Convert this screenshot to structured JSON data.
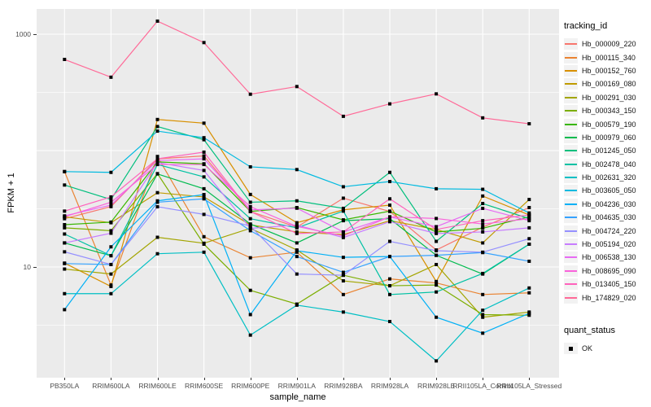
{
  "legend": {
    "tracking_title": "tracking_id",
    "quant_title": "quant_status",
    "quant_items": [
      {
        "label": "OK",
        "marker": "black-square"
      }
    ]
  },
  "colors": {
    "panel_bg": "#EBEBEB",
    "grid": "#FFFFFF",
    "axis_text": "#4D4D4D",
    "tick_mark": "#333333",
    "legend_key_bg": "#F2F2F2",
    "point": "#000000"
  },
  "chart_data": {
    "type": "line",
    "title": "",
    "xlabel": "sample_name",
    "ylabel": "FPKM + 1",
    "yscale": "log10",
    "legend_position": "right",
    "grid": "on",
    "ylim": [
      1.1,
      1500
    ],
    "yticks": [
      {
        "label": "10",
        "value": 10
      },
      {
        "label": "1000",
        "value": 1000
      }
    ],
    "grid_major": [
      10,
      100,
      1000
    ],
    "grid_minor": [
      3.16,
      31.6,
      316
    ],
    "categories": [
      "PB350LA",
      "RRIM600LA",
      "RRIM600LE",
      "RRIM600SE",
      "RRIM600PE",
      "RRIM901LA",
      "RRIM928BA",
      "RRIM928LA",
      "RRIM928LE",
      "RRII105LA_Control",
      "RRII105LA_Stressed"
    ],
    "point_shape": "square",
    "series": [
      {
        "name": "Hb_000009_220",
        "color": "#F8766D",
        "values": [
          26,
          33,
          85,
          90,
          30,
          22,
          39,
          30,
          14,
          22,
          32.4
        ]
      },
      {
        "name": "Hb_000115_340",
        "color": "#EA8331",
        "values": [
          66,
          7.0,
          89,
          18.2,
          12,
          13.4,
          5.8,
          7.9,
          7.3,
          5.8,
          6.0
        ]
      },
      {
        "name": "Hb_000152_760",
        "color": "#D89000",
        "values": [
          10.8,
          6.8,
          185,
          172,
          42,
          24,
          31,
          34,
          7.5,
          40.7,
          28
        ]
      },
      {
        "name": "Hb_000169_080",
        "color": "#C09B00",
        "values": [
          27,
          24,
          43.5,
          40,
          23,
          20,
          19,
          25,
          21,
          16.1,
          38
        ]
      },
      {
        "name": "Hb_000291_030",
        "color": "#A3A500",
        "values": [
          9.6,
          8.7,
          18,
          16,
          21.5,
          14,
          7.6,
          6.9,
          10.5,
          3.7,
          4.1
        ]
      },
      {
        "name": "Hb_000343_150",
        "color": "#7CAE00",
        "values": [
          21.7,
          20.5,
          63.4,
          15.7,
          6.3,
          4.8,
          8.5,
          6.9,
          7.0,
          3.9,
          3.85
        ]
      },
      {
        "name": "Hb_000579_190",
        "color": "#39B600",
        "values": [
          23.1,
          24.3,
          80,
          77,
          30,
          32.4,
          25.4,
          30.2,
          20,
          21.5,
          27
        ]
      },
      {
        "name": "Hb_000979_060",
        "color": "#00BB4E",
        "values": [
          16.1,
          12.5,
          63,
          47,
          23.4,
          16.1,
          25,
          26,
          12.6,
          8.7,
          15.7
        ]
      },
      {
        "name": "Hb_001245_050",
        "color": "#00BF7D",
        "values": [
          50.6,
          38,
          161,
          124,
          36,
          37,
          31.9,
          65,
          16.6,
          35.1,
          26
        ]
      },
      {
        "name": "Hb_002478_040",
        "color": "#00C1A3",
        "values": [
          19.2,
          12.5,
          76,
          59.4,
          26,
          21.7,
          30.2,
          5.8,
          6.1,
          8.8,
          15.7
        ]
      },
      {
        "name": "Hb_002631_320",
        "color": "#00BFC4",
        "values": [
          5.9,
          5.9,
          13,
          13.4,
          2.6,
          4.7,
          4.1,
          3.4,
          1.56,
          4.25,
          6.6
        ]
      },
      {
        "name": "Hb_003605_050",
        "color": "#00BAE0",
        "values": [
          66,
          65,
          147,
          129,
          72.5,
          68.7,
          48.9,
          54.2,
          47,
          46.5,
          29.1
        ]
      },
      {
        "name": "Hb_004236_030",
        "color": "#00B0F6",
        "values": [
          4.3,
          14.9,
          37,
          41.9,
          3.9,
          13.8,
          12.1,
          12.3,
          3.7,
          2.7,
          4.0
        ]
      },
      {
        "name": "Hb_004635_030",
        "color": "#35A2FF",
        "values": [
          10.7,
          10.5,
          36,
          38.5,
          20.5,
          12.3,
          9.0,
          12.3,
          12.6,
          13.3,
          11.2
        ]
      },
      {
        "name": "Hb_004724_220",
        "color": "#9590FF",
        "values": [
          13.5,
          10.5,
          32.9,
          28.3,
          22.5,
          8.7,
          8.5,
          16.6,
          13.8,
          13.4,
          17.5
        ]
      },
      {
        "name": "Hb_005194_020",
        "color": "#C77CFF",
        "values": [
          16.1,
          19.5,
          79,
          67.5,
          21.5,
          22.9,
          17.9,
          24.5,
          19.4,
          20.0,
          21.7
        ]
      },
      {
        "name": "Hb_006538_130",
        "color": "#E76BF3",
        "values": [
          27.5,
          34,
          82,
          85,
          31,
          32,
          20,
          26.9,
          22.2,
          31.9,
          25
        ]
      },
      {
        "name": "Hb_008695_090",
        "color": "#FA62DB",
        "values": [
          27,
          36,
          76,
          76,
          33,
          22.3,
          18.5,
          27,
          26.1,
          23.4,
          26
        ]
      },
      {
        "name": "Hb_013405_150",
        "color": "#FF62BC",
        "values": [
          30.2,
          40,
          85,
          97,
          30,
          19.4,
          20,
          38.5,
          21,
          25,
          28
        ]
      },
      {
        "name": "Hb_174829_020",
        "color": "#FF6A98",
        "values": [
          607,
          427,
          1295,
          847,
          305,
          355,
          197,
          252,
          307,
          191,
          170
        ]
      }
    ]
  }
}
